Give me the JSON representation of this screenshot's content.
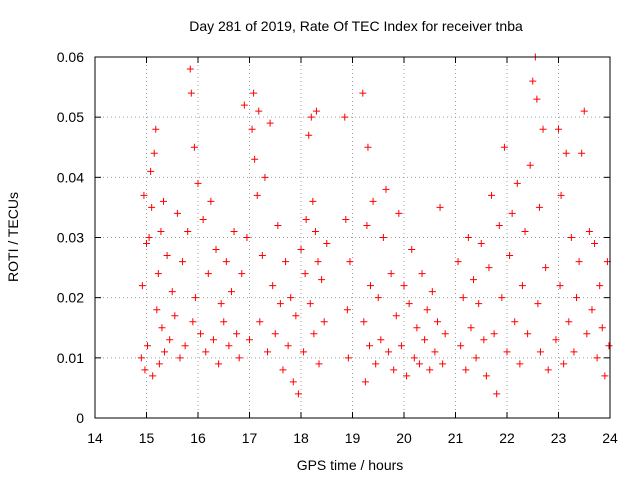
{
  "chart_data": {
    "type": "scatter",
    "title": "Day 281 of 2019, Rate Of TEC Index for receiver tnba",
    "xlabel": "GPS time / hours",
    "ylabel": "ROTI / TECUs",
    "xlim": [
      14,
      24
    ],
    "ylim": [
      0,
      0.06
    ],
    "xticks": [
      14,
      15,
      16,
      17,
      18,
      19,
      20,
      21,
      22,
      23,
      24
    ],
    "yticks": [
      0,
      0.01,
      0.02,
      0.03,
      0.04,
      0.05,
      0.06
    ],
    "xtick_labels": [
      "14",
      "15",
      "16",
      "17",
      "18",
      "19",
      "20",
      "21",
      "22",
      "23",
      "24"
    ],
    "ytick_labels": [
      "0",
      "0.01",
      "0.02",
      "0.03",
      "0.04",
      "0.05",
      "0.06"
    ],
    "grid": true,
    "marker": "plus",
    "color": "#ff0000",
    "series": [
      {
        "name": "ROTI",
        "points": [
          [
            14.9,
            0.01
          ],
          [
            14.92,
            0.022
          ],
          [
            14.95,
            0.037
          ],
          [
            14.97,
            0.008
          ],
          [
            15.0,
            0.029
          ],
          [
            15.02,
            0.012
          ],
          [
            15.05,
            0.03
          ],
          [
            15.08,
            0.041
          ],
          [
            15.1,
            0.035
          ],
          [
            15.12,
            0.007
          ],
          [
            15.15,
            0.044
          ],
          [
            15.18,
            0.048
          ],
          [
            15.2,
            0.018
          ],
          [
            15.23,
            0.024
          ],
          [
            15.25,
            0.009
          ],
          [
            15.28,
            0.031
          ],
          [
            15.3,
            0.015
          ],
          [
            15.33,
            0.036
          ],
          [
            15.35,
            0.011
          ],
          [
            15.4,
            0.027
          ],
          [
            15.45,
            0.013
          ],
          [
            15.5,
            0.021
          ],
          [
            15.55,
            0.017
          ],
          [
            15.6,
            0.034
          ],
          [
            15.65,
            0.01
          ],
          [
            15.7,
            0.026
          ],
          [
            15.75,
            0.012
          ],
          [
            15.8,
            0.031
          ],
          [
            15.85,
            0.058
          ],
          [
            15.87,
            0.054
          ],
          [
            15.9,
            0.016
          ],
          [
            15.93,
            0.045
          ],
          [
            15.95,
            0.02
          ],
          [
            16.0,
            0.039
          ],
          [
            16.05,
            0.014
          ],
          [
            16.1,
            0.033
          ],
          [
            16.15,
            0.011
          ],
          [
            16.2,
            0.024
          ],
          [
            16.25,
            0.036
          ],
          [
            16.3,
            0.013
          ],
          [
            16.35,
            0.028
          ],
          [
            16.4,
            0.009
          ],
          [
            16.45,
            0.019
          ],
          [
            16.5,
            0.016
          ],
          [
            16.55,
            0.026
          ],
          [
            16.6,
            0.012
          ],
          [
            16.65,
            0.021
          ],
          [
            16.7,
            0.031
          ],
          [
            16.75,
            0.014
          ],
          [
            16.8,
            0.01
          ],
          [
            16.85,
            0.024
          ],
          [
            16.9,
            0.052
          ],
          [
            16.95,
            0.03
          ],
          [
            17.0,
            0.013
          ],
          [
            17.05,
            0.048
          ],
          [
            17.08,
            0.054
          ],
          [
            17.1,
            0.043
          ],
          [
            17.15,
            0.037
          ],
          [
            17.18,
            0.051
          ],
          [
            17.2,
            0.016
          ],
          [
            17.25,
            0.027
          ],
          [
            17.3,
            0.04
          ],
          [
            17.35,
            0.011
          ],
          [
            17.4,
            0.049
          ],
          [
            17.45,
            0.022
          ],
          [
            17.5,
            0.014
          ],
          [
            17.55,
            0.032
          ],
          [
            17.6,
            0.019
          ],
          [
            17.65,
            0.008
          ],
          [
            17.7,
            0.026
          ],
          [
            17.75,
            0.012
          ],
          [
            17.8,
            0.02
          ],
          [
            17.85,
            0.006
          ],
          [
            17.9,
            0.017
          ],
          [
            17.95,
            0.004
          ],
          [
            18.0,
            0.028
          ],
          [
            18.05,
            0.011
          ],
          [
            18.08,
            0.024
          ],
          [
            18.1,
            0.033
          ],
          [
            18.15,
            0.047
          ],
          [
            18.18,
            0.019
          ],
          [
            18.2,
            0.05
          ],
          [
            18.23,
            0.036
          ],
          [
            18.25,
            0.014
          ],
          [
            18.28,
            0.031
          ],
          [
            18.3,
            0.051
          ],
          [
            18.33,
            0.026
          ],
          [
            18.35,
            0.009
          ],
          [
            18.4,
            0.023
          ],
          [
            18.45,
            0.016
          ],
          [
            18.5,
            0.029
          ],
          [
            18.85,
            0.05
          ],
          [
            18.87,
            0.033
          ],
          [
            18.9,
            0.018
          ],
          [
            18.92,
            0.01
          ],
          [
            18.95,
            0.026
          ],
          [
            19.2,
            0.054
          ],
          [
            19.22,
            0.016
          ],
          [
            19.25,
            0.006
          ],
          [
            19.28,
            0.032
          ],
          [
            19.3,
            0.045
          ],
          [
            19.33,
            0.012
          ],
          [
            19.35,
            0.022
          ],
          [
            19.4,
            0.036
          ],
          [
            19.45,
            0.009
          ],
          [
            19.5,
            0.02
          ],
          [
            19.55,
            0.013
          ],
          [
            19.6,
            0.03
          ],
          [
            19.65,
            0.038
          ],
          [
            19.7,
            0.011
          ],
          [
            19.75,
            0.024
          ],
          [
            19.8,
            0.008
          ],
          [
            19.85,
            0.017
          ],
          [
            19.9,
            0.034
          ],
          [
            19.95,
            0.012
          ],
          [
            20.0,
            0.022
          ],
          [
            20.05,
            0.007
          ],
          [
            20.1,
            0.019
          ],
          [
            20.15,
            0.028
          ],
          [
            20.2,
            0.01
          ],
          [
            20.25,
            0.015
          ],
          [
            20.3,
            0.009
          ],
          [
            20.35,
            0.024
          ],
          [
            20.4,
            0.013
          ],
          [
            20.45,
            0.018
          ],
          [
            20.5,
            0.008
          ],
          [
            20.55,
            0.021
          ],
          [
            20.6,
            0.011
          ],
          [
            20.65,
            0.016
          ],
          [
            20.7,
            0.035
          ],
          [
            20.75,
            0.009
          ],
          [
            20.8,
            0.014
          ],
          [
            21.05,
            0.026
          ],
          [
            21.1,
            0.012
          ],
          [
            21.15,
            0.02
          ],
          [
            21.2,
            0.008
          ],
          [
            21.25,
            0.03
          ],
          [
            21.3,
            0.015
          ],
          [
            21.35,
            0.023
          ],
          [
            21.4,
            0.01
          ],
          [
            21.45,
            0.019
          ],
          [
            21.5,
            0.029
          ],
          [
            21.55,
            0.013
          ],
          [
            21.6,
            0.007
          ],
          [
            21.65,
            0.025
          ],
          [
            21.7,
            0.037
          ],
          [
            21.75,
            0.014
          ],
          [
            21.8,
            0.004
          ],
          [
            21.85,
            0.032
          ],
          [
            21.9,
            0.02
          ],
          [
            21.95,
            0.045
          ],
          [
            22.0,
            0.011
          ],
          [
            22.05,
            0.027
          ],
          [
            22.1,
            0.034
          ],
          [
            22.15,
            0.016
          ],
          [
            22.2,
            0.039
          ],
          [
            22.25,
            0.009
          ],
          [
            22.3,
            0.022
          ],
          [
            22.35,
            0.031
          ],
          [
            22.4,
            0.014
          ],
          [
            22.45,
            0.042
          ],
          [
            22.5,
            0.056
          ],
          [
            22.55,
            0.06
          ],
          [
            22.58,
            0.053
          ],
          [
            22.6,
            0.019
          ],
          [
            22.63,
            0.035
          ],
          [
            22.65,
            0.011
          ],
          [
            22.7,
            0.048
          ],
          [
            22.75,
            0.025
          ],
          [
            22.8,
            0.008
          ],
          [
            22.95,
            0.013
          ],
          [
            23.0,
            0.048
          ],
          [
            23.03,
            0.022
          ],
          [
            23.05,
            0.037
          ],
          [
            23.1,
            0.009
          ],
          [
            23.15,
            0.044
          ],
          [
            23.2,
            0.016
          ],
          [
            23.25,
            0.03
          ],
          [
            23.3,
            0.011
          ],
          [
            23.35,
            0.02
          ],
          [
            23.4,
            0.026
          ],
          [
            23.45,
            0.044
          ],
          [
            23.5,
            0.051
          ],
          [
            23.55,
            0.014
          ],
          [
            23.6,
            0.031
          ],
          [
            23.65,
            0.018
          ],
          [
            23.7,
            0.029
          ],
          [
            23.75,
            0.01
          ],
          [
            23.8,
            0.022
          ],
          [
            23.85,
            0.015
          ],
          [
            23.9,
            0.007
          ],
          [
            23.95,
            0.026
          ],
          [
            23.98,
            0.012
          ]
        ]
      }
    ]
  }
}
